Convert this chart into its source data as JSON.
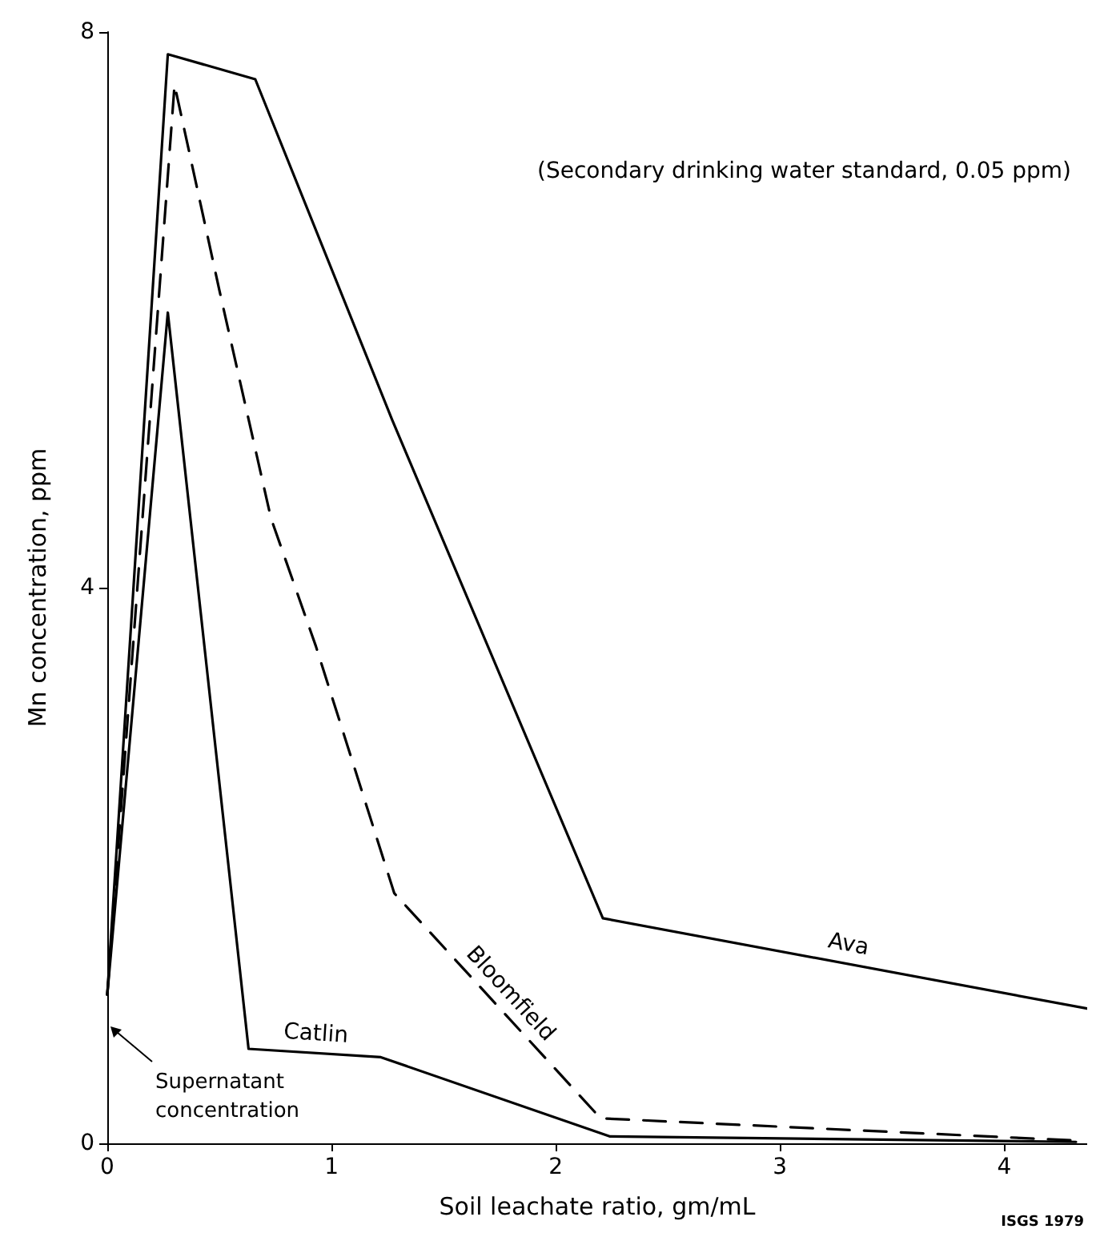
{
  "chart_data": {
    "type": "line",
    "xlabel": "Soil leachate ratio, gm/mL",
    "ylabel": "Mn concentration, ppm",
    "xlim": [
      0,
      4.37
    ],
    "xticks": [
      0,
      1,
      2,
      3,
      4
    ],
    "ylim": [
      0,
      8
    ],
    "yticks": [
      0,
      4,
      8
    ],
    "grid": false,
    "legend": false,
    "marker": "none",
    "series": [
      {
        "name": "Ava",
        "color": "#000000",
        "line_style": "solid",
        "x": [
          0,
          0.27,
          0.66,
          1.27,
          2.21,
          4.37
        ],
        "values": [
          1.07,
          7.84,
          7.66,
          5.21,
          1.62,
          0.97
        ]
      },
      {
        "name": "Bloomfield",
        "color": "#000000",
        "line_style": "dashed",
        "x": [
          0,
          0.3,
          0.5,
          0.73,
          0.93,
          1.28,
          2.2,
          4.32
        ],
        "values": [
          1.07,
          7.62,
          6.14,
          4.5,
          3.58,
          1.8,
          0.18,
          0.02
        ]
      },
      {
        "name": "Catlin",
        "color": "#000000",
        "line_style": "solid",
        "x": [
          0,
          0.27,
          0.63,
          1.22,
          2.24,
          4.32
        ],
        "values": [
          1.07,
          5.98,
          0.68,
          0.62,
          0.05,
          0.01
        ]
      }
    ],
    "annotations": [
      "(Secondary drinking water standard, 0.05 ppm)",
      "Supernatant concentration",
      "ISGS 1979"
    ]
  }
}
